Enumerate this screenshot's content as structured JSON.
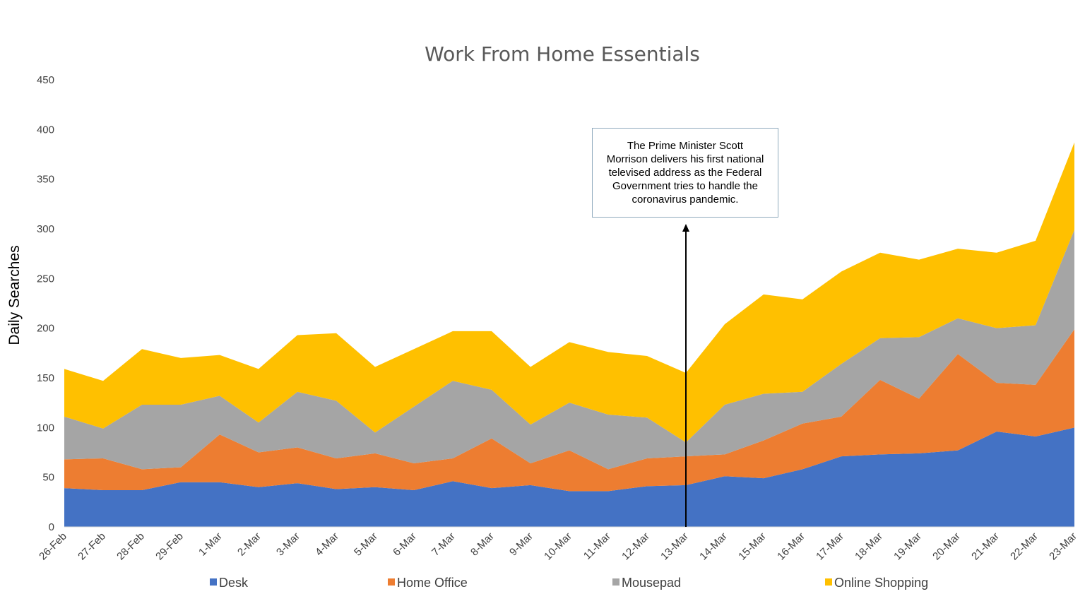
{
  "chart_data": {
    "type": "area",
    "stacked": true,
    "title": "Work From Home Essentials",
    "xlabel": "",
    "ylabel": "Daily Searches",
    "ylim": [
      0,
      450
    ],
    "yticks": [
      0,
      50,
      100,
      150,
      200,
      250,
      300,
      350,
      400,
      450
    ],
    "categories": [
      "26-Feb",
      "27-Feb",
      "28-Feb",
      "29-Feb",
      "1-Mar",
      "2-Mar",
      "3-Mar",
      "4-Mar",
      "5-Mar",
      "6-Mar",
      "7-Mar",
      "8-Mar",
      "9-Mar",
      "10-Mar",
      "11-Mar",
      "12-Mar",
      "13-Mar",
      "14-Mar",
      "15-Mar",
      "16-Mar",
      "17-Mar",
      "18-Mar",
      "19-Mar",
      "20-Mar",
      "21-Mar",
      "22-Mar",
      "23-Mar"
    ],
    "series": [
      {
        "name": "Desk",
        "color": "#4472c4",
        "values": [
          39,
          37,
          37,
          45,
          45,
          40,
          44,
          38,
          40,
          37,
          46,
          39,
          42,
          36,
          36,
          41,
          42,
          51,
          49,
          58,
          71,
          73,
          74,
          77,
          96,
          91,
          100
        ]
      },
      {
        "name": "Home Office",
        "color": "#ed7d31",
        "values": [
          29,
          32,
          21,
          15,
          48,
          35,
          36,
          31,
          34,
          27,
          23,
          50,
          22,
          41,
          22,
          28,
          29,
          22,
          38,
          46,
          40,
          75,
          55,
          97,
          49,
          52,
          99
        ]
      },
      {
        "name": "Mousepad",
        "color": "#a5a5a5",
        "values": [
          43,
          30,
          65,
          63,
          39,
          30,
          56,
          58,
          21,
          57,
          78,
          49,
          39,
          48,
          55,
          41,
          14,
          50,
          47,
          32,
          53,
          42,
          62,
          36,
          55,
          60,
          100
        ]
      },
      {
        "name": "Online Shopping",
        "color": "#ffc000",
        "values": [
          48,
          48,
          56,
          47,
          41,
          54,
          57,
          68,
          66,
          58,
          50,
          59,
          58,
          61,
          63,
          62,
          70,
          81,
          100,
          93,
          93,
          86,
          78,
          70,
          76,
          85,
          88
        ]
      }
    ],
    "legend": "bottom",
    "grid": false,
    "annotation": {
      "category": "13-Mar",
      "text": "The Prime Minister Scott Morrison delivers his first national televised address as the Federal Government tries to handle the coronavirus pandemic."
    }
  }
}
